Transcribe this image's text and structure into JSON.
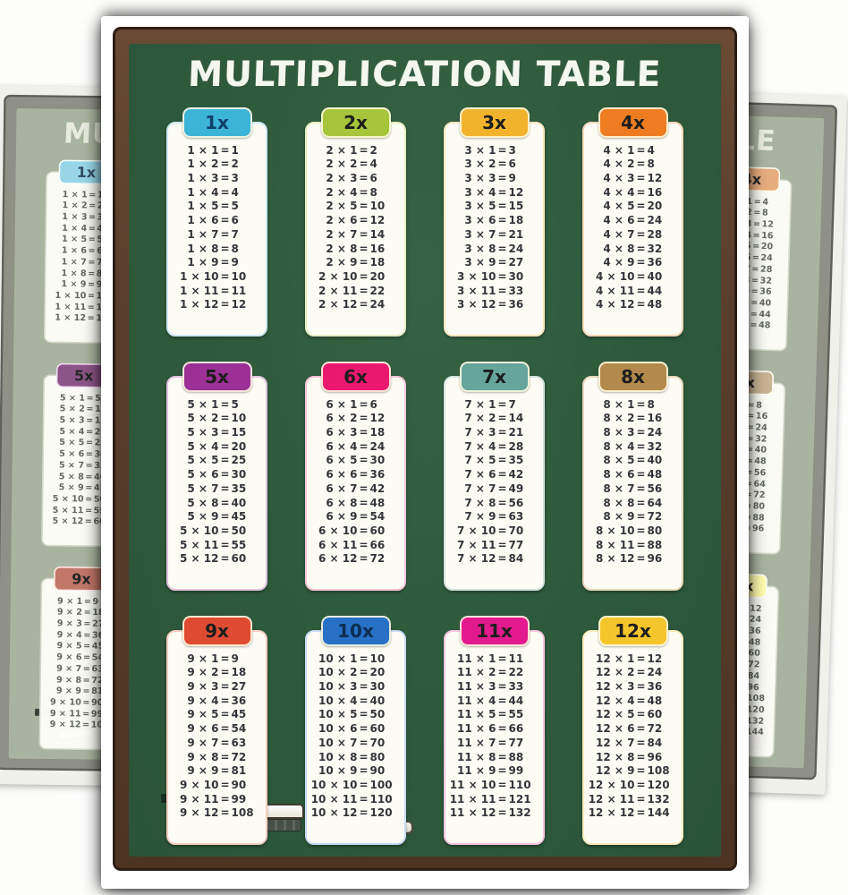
{
  "poster": {
    "title": "MULTIPLICATION TABLE",
    "board_color": "#2e5a3c",
    "frame_color": "#5b3e2c",
    "times_symbol": "×",
    "equals_symbol": "=",
    "multipliers": [
      1,
      2,
      3,
      4,
      5,
      6,
      7,
      8,
      9,
      10,
      11,
      12
    ],
    "tables": [
      {
        "label": "1x",
        "color": "#3bb4d8",
        "tint": "#cdeaf3",
        "text": "#11406b",
        "factor": 1,
        "products": [
          1,
          2,
          3,
          4,
          5,
          6,
          7,
          8,
          9,
          10,
          11,
          12
        ]
      },
      {
        "label": "2x",
        "color": "#a6c53b",
        "tint": "#e5eec4",
        "text": "#1d1d1d",
        "factor": 2,
        "products": [
          2,
          4,
          6,
          8,
          10,
          12,
          14,
          16,
          18,
          20,
          22,
          24
        ]
      },
      {
        "label": "3x",
        "color": "#f2b32c",
        "tint": "#fae7bd",
        "text": "#1d1d1d",
        "factor": 3,
        "products": [
          3,
          6,
          9,
          12,
          15,
          18,
          21,
          24,
          27,
          30,
          33,
          36
        ]
      },
      {
        "label": "4x",
        "color": "#ee7d22",
        "tint": "#f9d9bb",
        "text": "#1d1d1d",
        "factor": 4,
        "products": [
          4,
          8,
          12,
          16,
          20,
          24,
          28,
          32,
          36,
          40,
          44,
          48
        ]
      },
      {
        "label": "5x",
        "color": "#9c3096",
        "tint": "#e2c4e0",
        "text": "#1d1d1d",
        "factor": 5,
        "products": [
          5,
          10,
          15,
          20,
          25,
          30,
          35,
          40,
          45,
          50,
          55,
          60
        ]
      },
      {
        "label": "6x",
        "color": "#ea196f",
        "tint": "#f8c5da",
        "text": "#1d1d1d",
        "factor": 6,
        "products": [
          6,
          12,
          18,
          24,
          30,
          36,
          42,
          48,
          54,
          60,
          66,
          72
        ]
      },
      {
        "label": "7x",
        "color": "#66a59c",
        "tint": "#d3e2df",
        "text": "#1d1d1d",
        "factor": 7,
        "products": [
          7,
          14,
          21,
          28,
          35,
          42,
          49,
          56,
          63,
          70,
          77,
          84
        ]
      },
      {
        "label": "8x",
        "color": "#b38a4c",
        "tint": "#e8d9bf",
        "text": "#1d1d1d",
        "factor": 8,
        "products": [
          8,
          16,
          24,
          32,
          40,
          48,
          56,
          64,
          72,
          80,
          88,
          96
        ]
      },
      {
        "label": "9x",
        "color": "#df4b30",
        "tint": "#f6cec2",
        "text": "#1d1d1d",
        "factor": 9,
        "products": [
          9,
          18,
          27,
          36,
          45,
          54,
          63,
          72,
          81,
          90,
          99,
          108
        ]
      },
      {
        "label": "10x",
        "color": "#2671c5",
        "tint": "#c6daf1",
        "text": "#0d2c50",
        "factor": 10,
        "products": [
          10,
          20,
          30,
          40,
          50,
          60,
          70,
          80,
          90,
          100,
          110,
          120
        ]
      },
      {
        "label": "11x",
        "color": "#e21a8d",
        "tint": "#f7c4e1",
        "text": "#1d1d1d",
        "factor": 11,
        "products": [
          11,
          22,
          33,
          44,
          55,
          66,
          77,
          88,
          99,
          110,
          121,
          132
        ]
      },
      {
        "label": "12x",
        "color": "#f5c62b",
        "tint": "#faecbc",
        "text": "#1d1d1d",
        "factor": 12,
        "products": [
          12,
          24,
          36,
          48,
          60,
          72,
          84,
          96,
          108,
          120,
          132,
          144
        ]
      }
    ]
  },
  "back_posters": {
    "left_visible_title_fragment": "MUL",
    "right_visible_title_fragment": "BLE",
    "note_colors": {
      "board": "#a9b4a0",
      "frame": "#8f9086"
    }
  },
  "decorations": {
    "apple_color": "#d6402b",
    "worm_color": "#f7f5ee",
    "chalk_color": "#fbfaf2",
    "eraser_base_color": "#49504a"
  }
}
